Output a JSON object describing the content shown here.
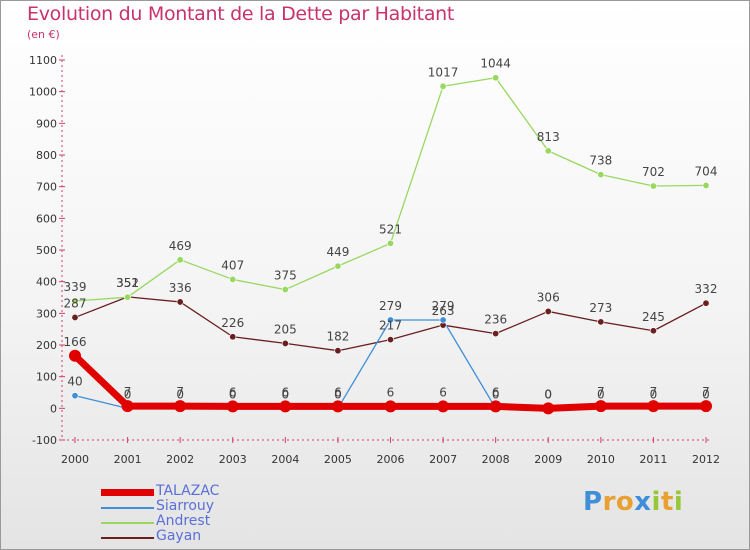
{
  "title": "Evolution du Montant de la Dette par Habitant",
  "unit_label": "(en €)",
  "logo": {
    "letters": [
      "P",
      "r",
      "o",
      "x",
      "i",
      "t",
      "i"
    ],
    "colors": [
      "#3f8fd8",
      "#e8a030",
      "#e8a030",
      "#3f8fd8",
      "#98c83a",
      "#e8a030",
      "#98c83a"
    ]
  },
  "chart_data": {
    "type": "line",
    "title": "Evolution du Montant de la Dette par Habitant",
    "ylabel": "(en €)",
    "xlabel": "",
    "x": [
      "2000",
      "2001",
      "2002",
      "2003",
      "2004",
      "2005",
      "2006",
      "2007",
      "2008",
      "2009",
      "2010",
      "2011",
      "2012"
    ],
    "ylim": [
      -100,
      1100
    ],
    "yticks": [
      "-100",
      "0",
      "100",
      "200",
      "300",
      "400",
      "500",
      "600",
      "700",
      "800",
      "900",
      "1000",
      "1100"
    ],
    "grid": false,
    "legend_position": "bottom-left",
    "series": [
      {
        "name": "TALAZAC",
        "color": "#e00000",
        "values": [
          166,
          7,
          7,
          6,
          6,
          6,
          6,
          6,
          6,
          0,
          7,
          7,
          7
        ],
        "labels": [
          "166",
          "7",
          "7",
          "6",
          "6",
          "6",
          "6",
          "6",
          "6",
          "0",
          "7",
          "7",
          "7"
        ]
      },
      {
        "name": "Siarrouy",
        "color": "#3f8fd8",
        "values": [
          40,
          0,
          0,
          0,
          0,
          0,
          279,
          279,
          0,
          0,
          0,
          0,
          0
        ],
        "labels": [
          "40",
          "0",
          "0",
          "0",
          "0",
          "0",
          "279",
          "279",
          "0",
          "0",
          "0",
          "0",
          "0"
        ]
      },
      {
        "name": "Andrest",
        "color": "#98d860",
        "values": [
          339,
          351,
          469,
          407,
          375,
          449,
          521,
          1017,
          1044,
          813,
          738,
          702,
          704
        ],
        "labels": [
          "339",
          "351",
          "469",
          "407",
          "375",
          "449",
          "521",
          "1017",
          "1044",
          "813",
          "738",
          "702",
          "704"
        ]
      },
      {
        "name": "Gayan",
        "color": "#6a1f1f",
        "values": [
          287,
          352,
          336,
          226,
          205,
          182,
          217,
          263,
          236,
          306,
          273,
          245,
          332
        ],
        "labels": [
          "287",
          "352",
          "336",
          "226",
          "205",
          "182",
          "217",
          "263",
          "236",
          "306",
          "273",
          "245",
          "332"
        ]
      }
    ]
  }
}
